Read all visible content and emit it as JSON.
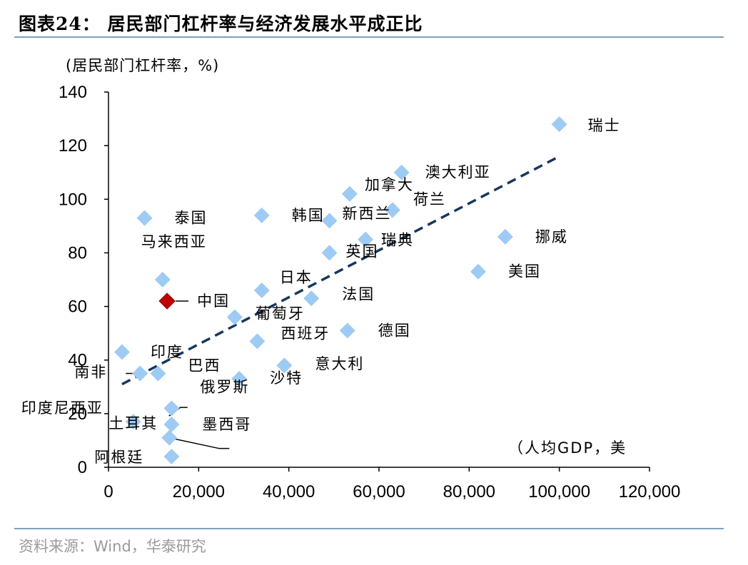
{
  "figure_title": "图表24：  居民部门杠杆率与经济发展水平成正比",
  "source": "资料来源：Wind，华泰研究",
  "chart_data": {
    "type": "scatter",
    "ylabel": "(居民部门杠杆率，%)",
    "xlabel": "（人均GDP，美",
    "xlim": [
      0,
      120000
    ],
    "ylim": [
      0,
      140
    ],
    "xticks": [
      "0",
      "20,000",
      "40,000",
      "60,000",
      "80,000",
      "100,000",
      "120,000"
    ],
    "yticks": [
      "0",
      "20",
      "40",
      "60",
      "80",
      "100",
      "120",
      "140"
    ],
    "point_color": "#9ecbf4",
    "highlight_color": "#c00000",
    "trendline_color": "#17375e",
    "trendline": {
      "x": [
        3000,
        100000
      ],
      "y": [
        31,
        116
      ]
    },
    "points": [
      {
        "label": "瑞士",
        "x": 100000,
        "y": 128
      },
      {
        "label": "澳大利亚",
        "x": 65000,
        "y": 110
      },
      {
        "label": "加拿大",
        "x": 53500,
        "y": 102
      },
      {
        "label": "荷兰",
        "x": 63000,
        "y": 96
      },
      {
        "label": "新西兰",
        "x": 49000,
        "y": 92
      },
      {
        "label": "瑞典",
        "x": 57000,
        "y": 85
      },
      {
        "label": "挪威",
        "x": 88000,
        "y": 86
      },
      {
        "label": "英国",
        "x": 49000,
        "y": 80
      },
      {
        "label": "美国",
        "x": 82000,
        "y": 73
      },
      {
        "label": "泰国",
        "x": 8000,
        "y": 93
      },
      {
        "label": "韩国",
        "x": 34000,
        "y": 94
      },
      {
        "label": "马来西亚",
        "x": 12000,
        "y": 70
      },
      {
        "label": "中国",
        "x": 13000,
        "y": 62,
        "highlight": true
      },
      {
        "label": "日本",
        "x": 34000,
        "y": 66
      },
      {
        "label": "法国",
        "x": 45000,
        "y": 63
      },
      {
        "label": "葡萄牙",
        "x": 28000,
        "y": 56
      },
      {
        "label": "德国",
        "x": 53000,
        "y": 51
      },
      {
        "label": "西班牙",
        "x": 33000,
        "y": 47
      },
      {
        "label": "印度",
        "x": 3000,
        "y": 43
      },
      {
        "label": "意大利",
        "x": 39000,
        "y": 38
      },
      {
        "label": "巴西",
        "x": 11000,
        "y": 35
      },
      {
        "label": "南非",
        "x": 7000,
        "y": 35
      },
      {
        "label": "沙特",
        "x": 29000,
        "y": 33
      },
      {
        "label": "俄罗斯",
        "x": 14000,
        "y": 22
      },
      {
        "label": "印度尼西亚",
        "x": 5500,
        "y": 17
      },
      {
        "label": "墨西哥",
        "x": 14000,
        "y": 16
      },
      {
        "label": "土耳其",
        "x": 13500,
        "y": 11
      },
      {
        "label": "阿根廷",
        "x": 14000,
        "y": 4
      }
    ]
  }
}
